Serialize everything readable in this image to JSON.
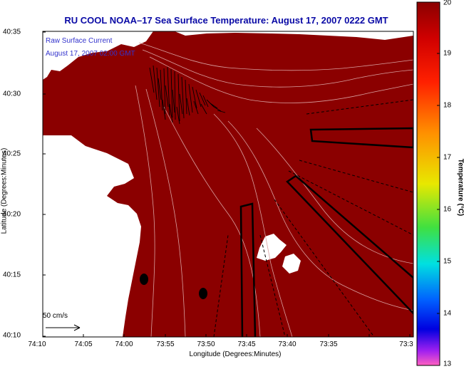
{
  "title": "RU COOL  NOAA–17  Sea Surface Temperature:  August 17, 2007 0222 GMT",
  "overlay": {
    "line1": "Raw Surface Current",
    "line2": "August 17, 2007 02:00 GMT"
  },
  "axes": {
    "ylabel": "Latitude (Degrees:Minutes)",
    "xlabel": "Longitude (Degrees:Minutes)",
    "yticks": [
      "40:35",
      "40:30",
      "40:25",
      "40:20",
      "40:15",
      "40:10"
    ],
    "xticks": [
      "74:10",
      "74:05",
      "74:00",
      "73:55",
      "73:50",
      "73:45",
      "73:40",
      "73:35",
      "73:3"
    ]
  },
  "scale_label": "50 cm/s",
  "colorbar": {
    "title": "Temperature (°C)",
    "ticks": [
      "20",
      "19",
      "18",
      "17",
      "16",
      "15",
      "14",
      "13"
    ],
    "range": [
      13,
      20
    ]
  },
  "colors": {
    "sst": "#8b0000",
    "land": "#ffffff",
    "contour": "#d9a0a0",
    "title": "#0a0aa6"
  }
}
